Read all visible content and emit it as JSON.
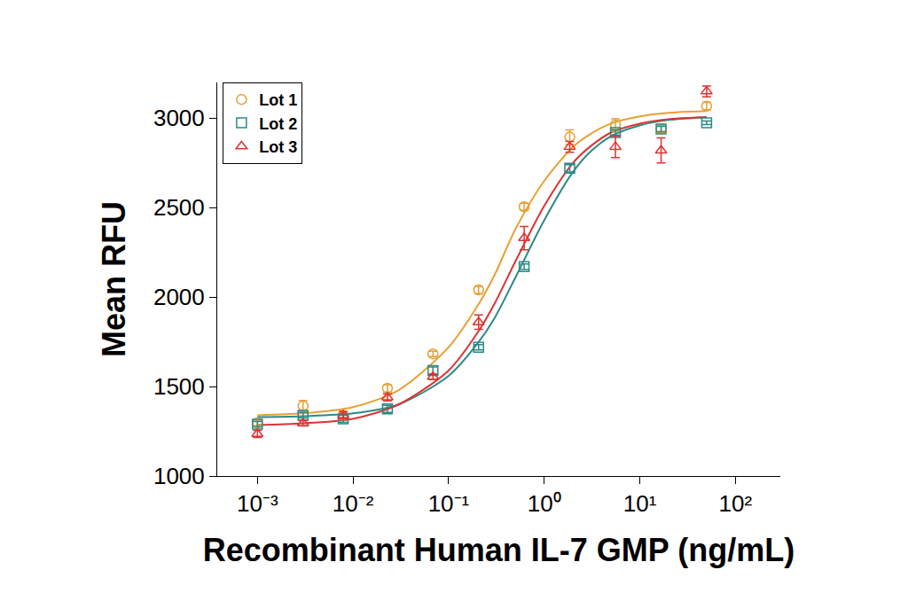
{
  "chart_data": {
    "type": "scatter",
    "x_label": "Recombinant Human IL-7 GMP (ng/mL)",
    "y_label": "Mean RFU",
    "log": "x",
    "grid": false,
    "legend": "upper left",
    "xlim": [
      0.00038,
      295
    ],
    "ylim": [
      1000,
      3200
    ],
    "xticks": [
      {
        "value": 0.001,
        "label": "10⁻³"
      },
      {
        "value": 0.01,
        "label": "10⁻²"
      },
      {
        "value": 0.1,
        "label": "10⁻¹"
      },
      {
        "value": 1,
        "label": "10⁰"
      },
      {
        "value": 10,
        "label": "10¹"
      },
      {
        "value": 100,
        "label": "10²"
      }
    ],
    "yticks": [
      1000,
      1500,
      2000,
      2500,
      3000
    ],
    "x": [
      0.001,
      0.003,
      0.0079,
      0.0229,
      0.0686,
      0.206,
      0.617,
      1.85,
      5.56,
      16.7,
      50
    ],
    "fit_x": [
      0.001,
      0.003,
      0.01,
      0.03,
      0.1,
      0.2,
      0.3,
      0.5,
      1,
      2,
      3,
      5,
      10,
      20,
      50
    ],
    "series": [
      {
        "name": "Lot 1",
        "color": "#e8a033",
        "marker": "circle-open",
        "values": [
          1297,
          1392,
          1340,
          1490,
          1683,
          2040,
          2505,
          2895,
          2962,
          2940,
          3068
        ],
        "error": [
          15,
          30,
          15,
          20,
          15,
          20,
          20,
          40,
          35,
          20,
          20
        ],
        "fit_values": [
          1340,
          1350,
          1385,
          1480,
          1720,
          1950,
          2120,
          2380,
          2650,
          2840,
          2910,
          2970,
          3010,
          3030,
          3040
        ]
      },
      {
        "name": "Lot 2",
        "color": "#2a8a86",
        "marker": "square-open",
        "values": [
          1290,
          1340,
          1320,
          1375,
          1590,
          1720,
          2170,
          2720,
          2920,
          2940,
          2975
        ],
        "error": [
          15,
          15,
          20,
          20,
          20,
          15,
          15,
          20,
          15,
          15,
          10
        ],
        "fit_values": [
          1330,
          1335,
          1350,
          1400,
          1560,
          1740,
          1880,
          2110,
          2430,
          2700,
          2810,
          2900,
          2960,
          2990,
          3005
        ]
      },
      {
        "name": "Lot 3",
        "color": "#e03232",
        "marker": "triangle-up-open",
        "values": [
          1235,
          1295,
          1340,
          1440,
          1555,
          1860,
          2330,
          2840,
          2840,
          2820,
          3150
        ],
        "error": [
          20,
          15,
          20,
          20,
          15,
          40,
          65,
          30,
          60,
          70,
          30
        ],
        "fit_values": [
          1285,
          1295,
          1320,
          1400,
          1590,
          1800,
          1960,
          2200,
          2510,
          2750,
          2840,
          2920,
          2970,
          2995,
          3005
        ]
      }
    ]
  }
}
